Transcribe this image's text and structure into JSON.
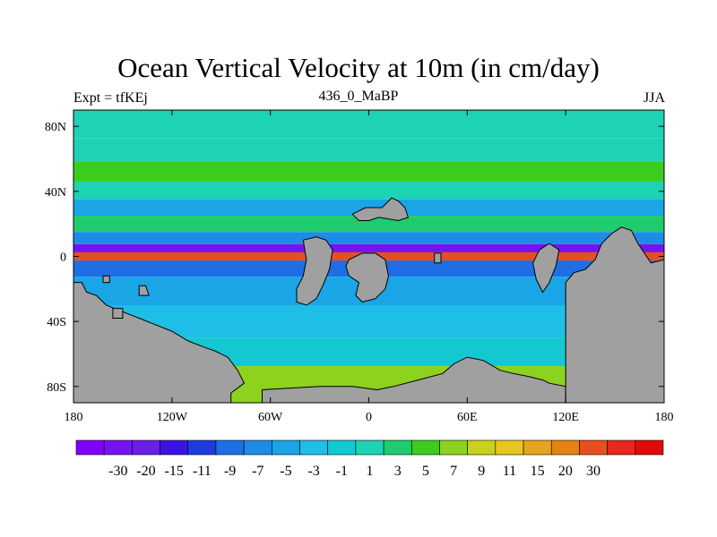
{
  "title": "Ocean Vertical Velocity at 10m (in cm/day)",
  "left_string": "Expt = tfKEj",
  "center_string": "436_0_MaBP",
  "right_string": "JJA",
  "map": {
    "lon_range": [
      -180,
      180
    ],
    "lat_range": [
      -90,
      90
    ],
    "x_ticks": [
      {
        "lon": -180,
        "label": "180"
      },
      {
        "lon": -120,
        "label": "120W"
      },
      {
        "lon": -60,
        "label": "60W"
      },
      {
        "lon": 0,
        "label": "0"
      },
      {
        "lon": 60,
        "label": "60E"
      },
      {
        "lon": 120,
        "label": "120E"
      },
      {
        "lon": 180,
        "label": "180"
      }
    ],
    "y_ticks": [
      {
        "lat": 80,
        "label": "80N"
      },
      {
        "lat": 40,
        "label": "40N"
      },
      {
        "lat": 0,
        "label": "0"
      },
      {
        "lat": -40,
        "label": "40S"
      },
      {
        "lat": -80,
        "label": "80S"
      }
    ],
    "land_color": "#a0a0a0"
  },
  "colorbar": {
    "colors": [
      "#7f00ff",
      "#7514f0",
      "#6a1fe6",
      "#3b14e0",
      "#1e3cdc",
      "#1e6ee6",
      "#1e8ce6",
      "#19a5e6",
      "#1ebee6",
      "#14c8d2",
      "#1ed2b4",
      "#1ecc6e",
      "#3ccc1e",
      "#8cd21e",
      "#c8d21e",
      "#e6c81e",
      "#e6a51e",
      "#e68214",
      "#e6501e",
      "#e6281e",
      "#e10a0a"
    ],
    "labels": [
      "-30",
      "-20",
      "-15",
      "-11",
      "-9",
      "-7",
      "-5",
      "-3",
      "-1",
      "1",
      "3",
      "5",
      "7",
      "9",
      "11",
      "15",
      "20",
      "30"
    ]
  },
  "chart_data": {
    "type": "heatmap",
    "title": "Ocean Vertical Velocity at 10m (in cm/day)",
    "variable": "Ocean Vertical Velocity at 10m",
    "units": "cm/day",
    "season": "JJA",
    "experiment": "tfKEj",
    "case": "436_0_MaBP",
    "x_range": [
      -180,
      180
    ],
    "y_range": [
      -90,
      90
    ],
    "contour_levels": [
      -30,
      -20,
      -15,
      -11,
      -9,
      -7,
      -5,
      -3,
      -1,
      1,
      3,
      5,
      7,
      9,
      11,
      15,
      20,
      30
    ],
    "zonal_bands": [
      {
        "lat": 80,
        "value": 2
      },
      {
        "lat": 65,
        "value": 1
      },
      {
        "lat": 52,
        "value": 6
      },
      {
        "lat": 40,
        "value": 1
      },
      {
        "lat": 30,
        "value": -4
      },
      {
        "lat": 20,
        "value": 4
      },
      {
        "lat": 10,
        "value": -7
      },
      {
        "lat": 5,
        "value": -25
      },
      {
        "lat": 0,
        "value": 30
      },
      {
        "lat": -5,
        "value": -9
      },
      {
        "lat": -20,
        "value": -4
      },
      {
        "lat": -40,
        "value": -3
      },
      {
        "lat": -60,
        "value": -1
      },
      {
        "lat": -75,
        "value": 8
      }
    ],
    "legend_position": "bottom"
  }
}
